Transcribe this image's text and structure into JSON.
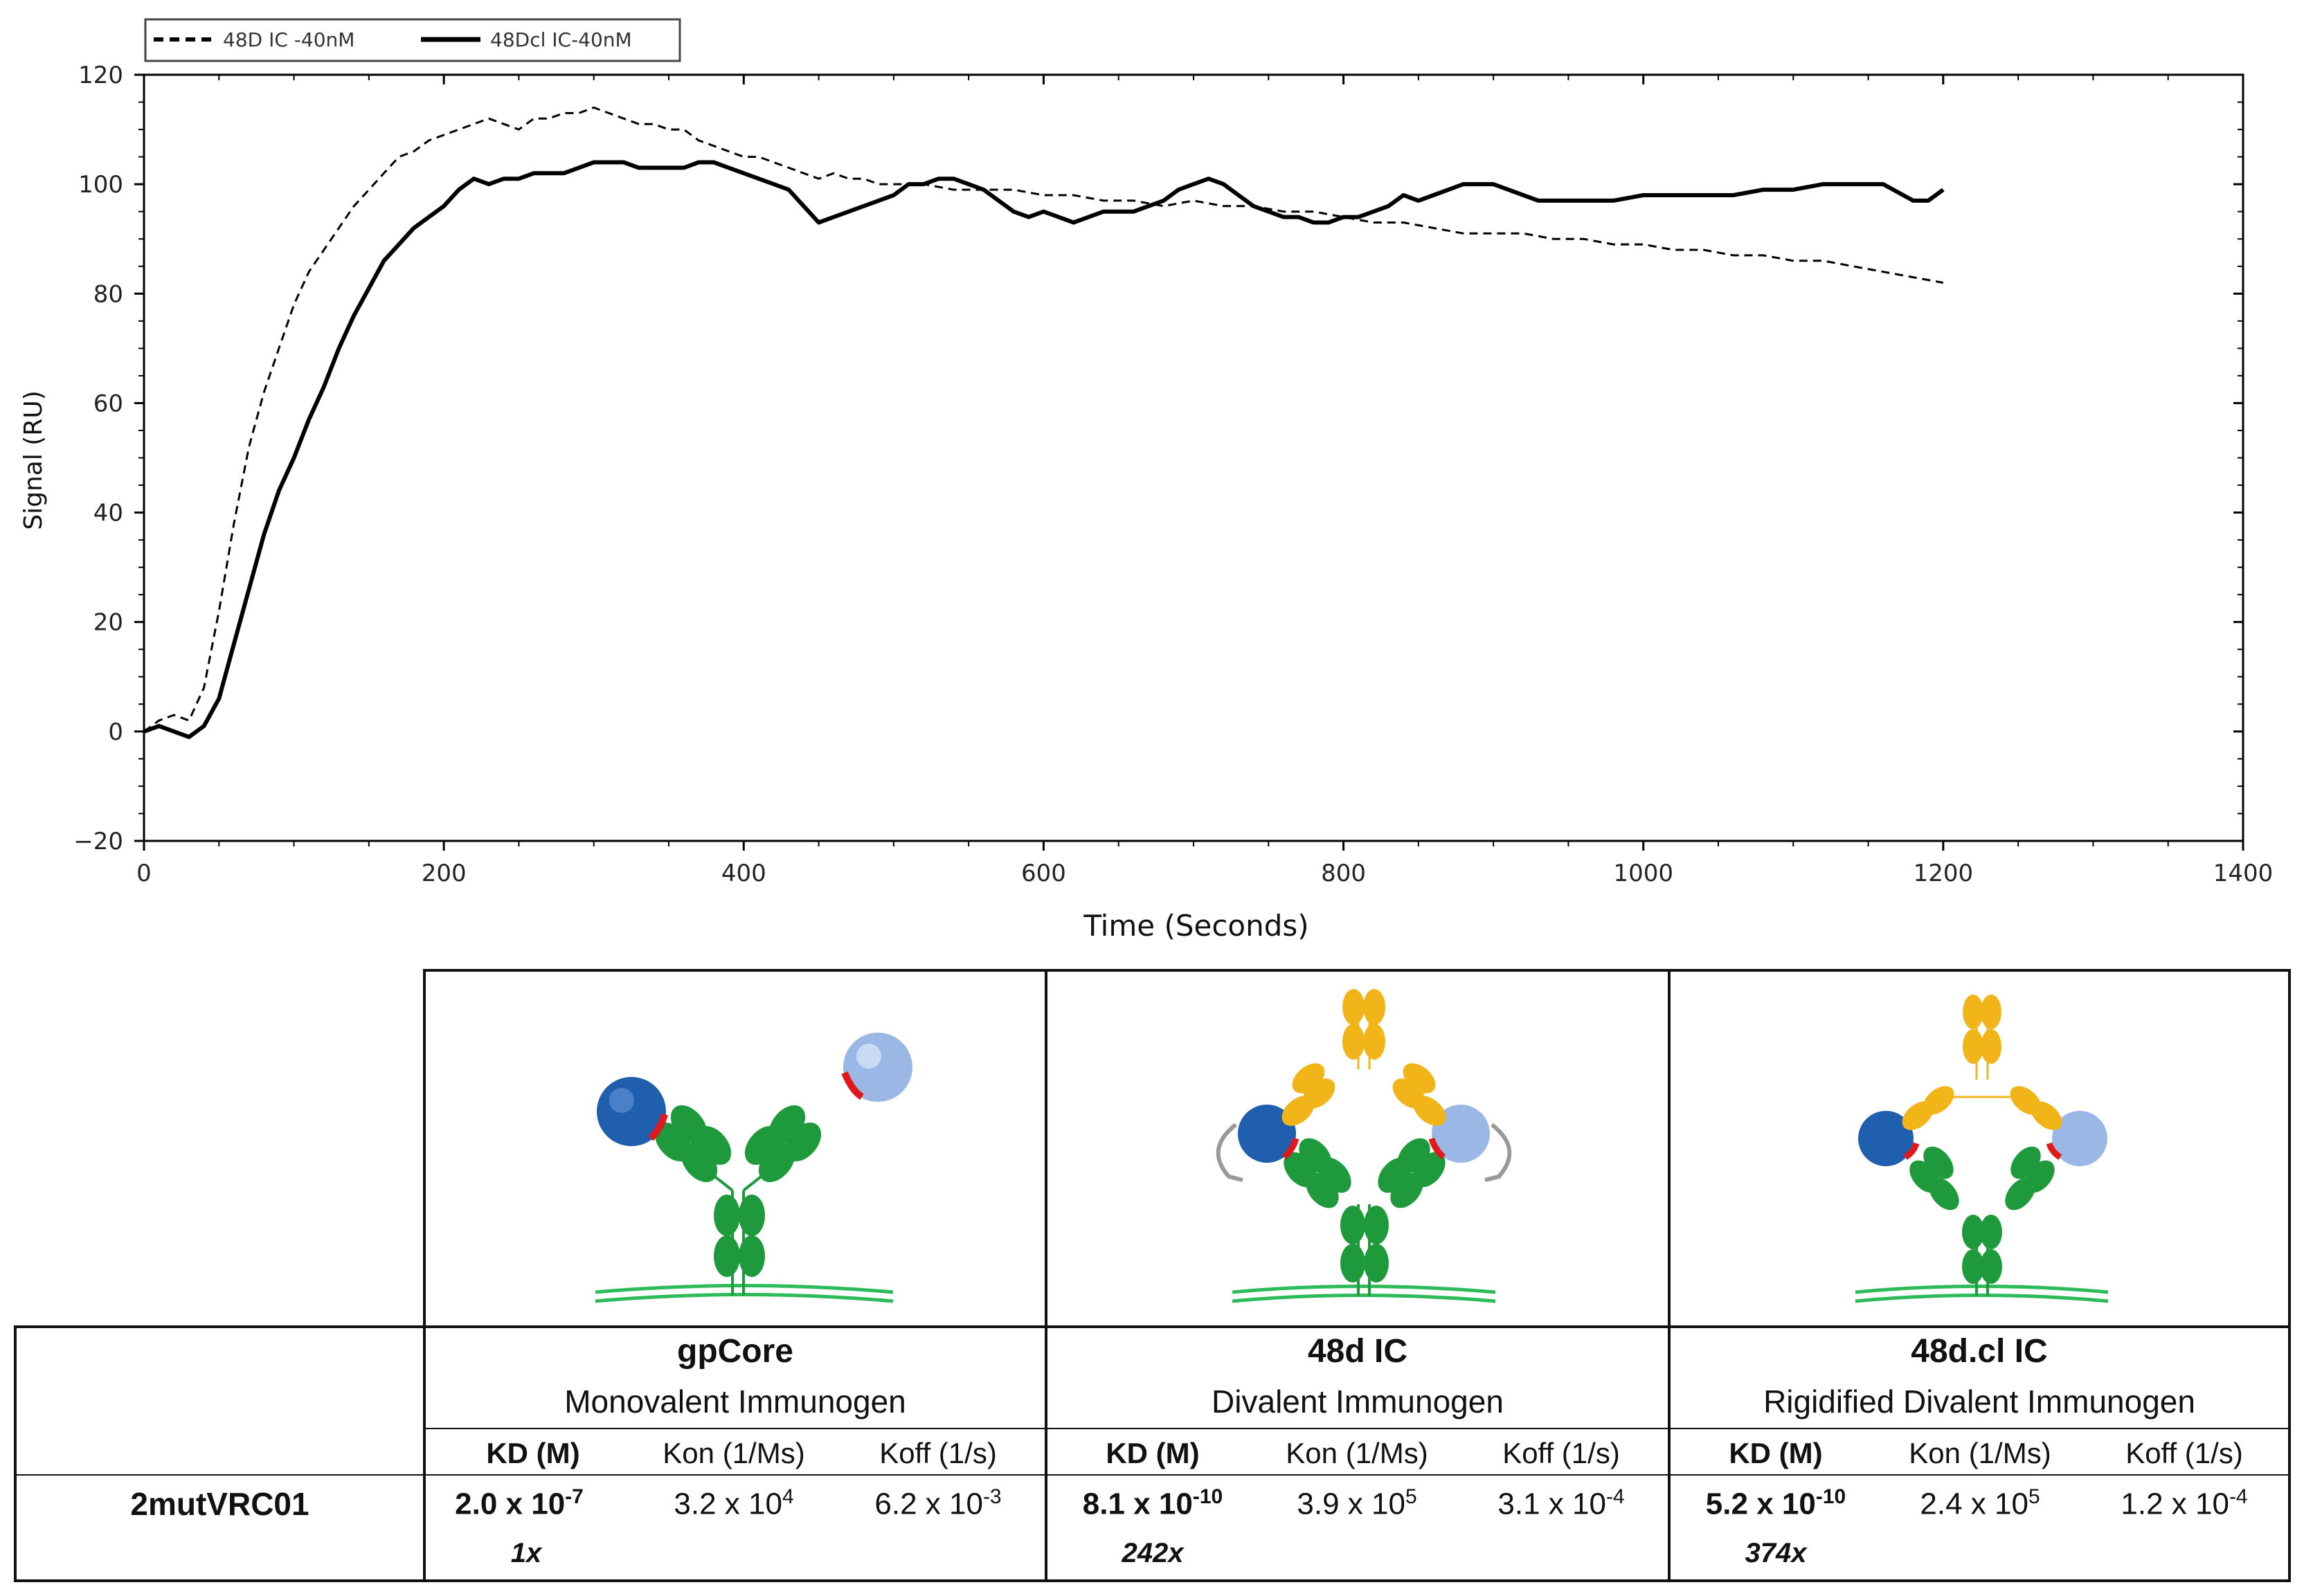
{
  "chart_data": {
    "type": "line",
    "title": "",
    "xlabel": "Time (Seconds)",
    "ylabel": "Signal (RU)",
    "xlim": [
      0,
      1400
    ],
    "ylim": [
      -20,
      120
    ],
    "xticks": [
      0,
      200,
      400,
      600,
      800,
      1000,
      1200,
      1400
    ],
    "yticks": [
      -20,
      0,
      20,
      40,
      60,
      80,
      100,
      120
    ],
    "grid": false,
    "legend_position": "top-left",
    "series": [
      {
        "name": "48D IC -40nM",
        "style": "dashed",
        "color": "#000000",
        "x": [
          0,
          10,
          20,
          30,
          40,
          50,
          60,
          70,
          80,
          90,
          100,
          110,
          120,
          130,
          140,
          150,
          160,
          170,
          180,
          190,
          200,
          210,
          220,
          230,
          240,
          250,
          260,
          270,
          280,
          290,
          300,
          310,
          320,
          330,
          340,
          350,
          360,
          370,
          380,
          390,
          400,
          410,
          420,
          430,
          440,
          450,
          460,
          470,
          480,
          490,
          500,
          520,
          540,
          560,
          580,
          600,
          620,
          640,
          660,
          680,
          700,
          720,
          740,
          760,
          780,
          800,
          820,
          840,
          860,
          880,
          900,
          920,
          940,
          960,
          980,
          1000,
          1020,
          1040,
          1060,
          1080,
          1100,
          1120,
          1140,
          1160,
          1180,
          1200
        ],
        "y": [
          0,
          2,
          3,
          2,
          8,
          22,
          38,
          52,
          62,
          70,
          78,
          84,
          88,
          92,
          96,
          99,
          102,
          105,
          106,
          108,
          109,
          110,
          111,
          112,
          111,
          110,
          112,
          112,
          113,
          113,
          114,
          113,
          112,
          111,
          111,
          110,
          110,
          108,
          107,
          106,
          105,
          105,
          104,
          103,
          102,
          101,
          102,
          101,
          101,
          100,
          100,
          100,
          99,
          99,
          99,
          98,
          98,
          97,
          97,
          96,
          97,
          96,
          96,
          95,
          95,
          94,
          93,
          93,
          92,
          91,
          91,
          91,
          90,
          90,
          89,
          89,
          88,
          88,
          87,
          87,
          86,
          86,
          85,
          84,
          83,
          82
        ]
      },
      {
        "name": "48Dcl IC-40nM",
        "style": "solid",
        "color": "#000000",
        "x": [
          0,
          10,
          20,
          30,
          40,
          50,
          60,
          70,
          80,
          90,
          100,
          110,
          120,
          130,
          140,
          150,
          160,
          170,
          180,
          190,
          200,
          210,
          220,
          230,
          240,
          250,
          260,
          270,
          280,
          290,
          300,
          310,
          320,
          330,
          340,
          350,
          360,
          370,
          380,
          390,
          400,
          410,
          420,
          430,
          440,
          450,
          460,
          470,
          480,
          490,
          500,
          510,
          520,
          530,
          540,
          550,
          560,
          570,
          580,
          590,
          600,
          610,
          620,
          630,
          640,
          650,
          660,
          670,
          680,
          690,
          700,
          710,
          720,
          730,
          740,
          750,
          760,
          770,
          780,
          790,
          800,
          810,
          820,
          830,
          840,
          850,
          860,
          870,
          880,
          890,
          900,
          910,
          920,
          930,
          940,
          960,
          980,
          1000,
          1020,
          1040,
          1060,
          1080,
          1100,
          1120,
          1140,
          1160,
          1180,
          1190,
          1200
        ],
        "y": [
          0,
          1,
          0,
          -1,
          1,
          6,
          16,
          26,
          36,
          44,
          50,
          57,
          63,
          70,
          76,
          81,
          86,
          89,
          92,
          94,
          96,
          99,
          101,
          100,
          101,
          101,
          102,
          102,
          102,
          103,
          104,
          104,
          104,
          103,
          103,
          103,
          103,
          104,
          104,
          103,
          102,
          101,
          100,
          99,
          96,
          93,
          94,
          95,
          96,
          97,
          98,
          100,
          100,
          101,
          101,
          100,
          99,
          97,
          95,
          94,
          95,
          94,
          93,
          94,
          95,
          95,
          95,
          96,
          97,
          99,
          100,
          101,
          100,
          98,
          96,
          95,
          94,
          94,
          93,
          93,
          94,
          94,
          95,
          96,
          98,
          97,
          98,
          99,
          100,
          100,
          100,
          99,
          98,
          97,
          97,
          97,
          97,
          98,
          98,
          98,
          98,
          99,
          99,
          100,
          100,
          100,
          97,
          97,
          99
        ]
      }
    ]
  },
  "legend": {
    "items": [
      "48D IC -40nM",
      "48Dcl IC-40nM"
    ]
  },
  "table": {
    "columns": [
      {
        "name": "gpCore",
        "subtitle": "Monovalent Immunogen",
        "headers": [
          "KD (M)",
          "Kon (1/Ms)",
          "Koff (1/s)"
        ],
        "kd_mant": "2.0 x 10",
        "kd_exp": "-7",
        "kon_mant": "3.2 x 10",
        "kon_exp": "4",
        "koff_mant": "6.2 x 10",
        "koff_exp": "-3",
        "fold": "1x"
      },
      {
        "name": "48d IC",
        "subtitle": "Divalent Immunogen",
        "headers": [
          "KD (M)",
          "Kon (1/Ms)",
          "Koff (1/s)"
        ],
        "kd_mant": "8.1 x 10",
        "kd_exp": "-10",
        "kon_mant": "3.9 x 10",
        "kon_exp": "5",
        "koff_mant": "3.1 x 10",
        "koff_exp": "-4",
        "fold": "242x"
      },
      {
        "name": "48d.cl IC",
        "subtitle": "Rigidified Divalent Immunogen",
        "headers": [
          "KD (M)",
          "Kon (1/Ms)",
          "Koff (1/s)"
        ],
        "kd_mant": "5.2 x 10",
        "kd_exp": "-10",
        "kon_mant": "2.4 x 10",
        "kon_exp": "5",
        "koff_mant": "1.2 x 10",
        "koff_exp": "-4",
        "fold": "374x"
      }
    ],
    "row_label": "2mutVRC01"
  },
  "colors": {
    "antibody_green": "#1e9a3c",
    "fab_yellow": "#f2b519",
    "sphere_dark_blue": "#1f5fae",
    "sphere_light_blue": "#9ab7e6",
    "epitope_red": "#e0191c",
    "surface_green": "#2dbb5a"
  }
}
